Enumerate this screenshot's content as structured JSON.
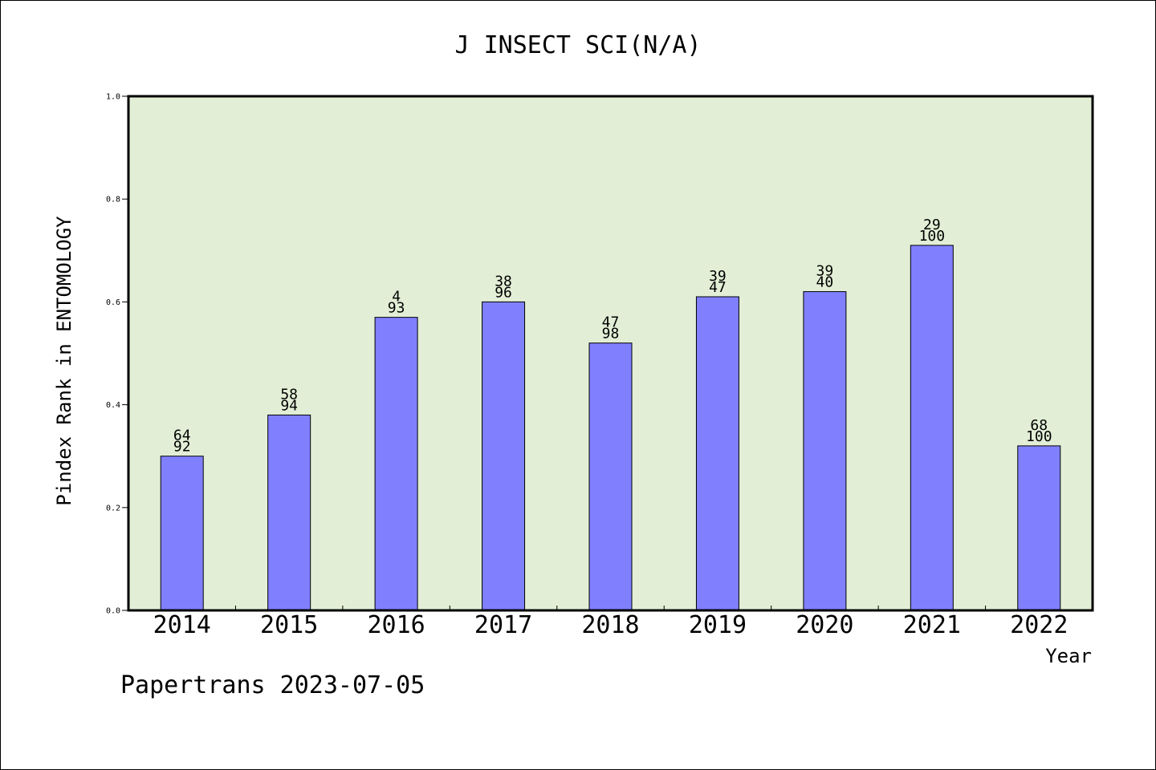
{
  "chart_data": {
    "type": "bar",
    "title": "J INSECT SCI(N/A)",
    "xlabel": "Year",
    "ylabel": "Pindex Rank in ENTOMOLOGY",
    "ylim": [
      0,
      1.0
    ],
    "yticks": [
      "0.0",
      "0.2",
      "0.4",
      "0.6",
      "0.8",
      "1.0"
    ],
    "grid": false,
    "categories": [
      "2014",
      "2015",
      "2016",
      "2017",
      "2018",
      "2019",
      "2020",
      "2021",
      "2022"
    ],
    "values": [
      0.3,
      0.38,
      0.57,
      0.6,
      0.52,
      0.61,
      0.62,
      0.71,
      0.32
    ],
    "labels_top": [
      "64",
      "58",
      "4",
      "38",
      "47",
      "39",
      "39",
      "29",
      "68"
    ],
    "labels_bottom": [
      "92",
      "94",
      "93",
      "96",
      "98",
      "47",
      "40",
      "100",
      "100"
    ],
    "colors": {
      "plot_background": "#e2efd6",
      "bar_fill": "#8080ff",
      "bar_stroke": "#000000"
    }
  },
  "footer": "Papertrans 2023-07-05"
}
